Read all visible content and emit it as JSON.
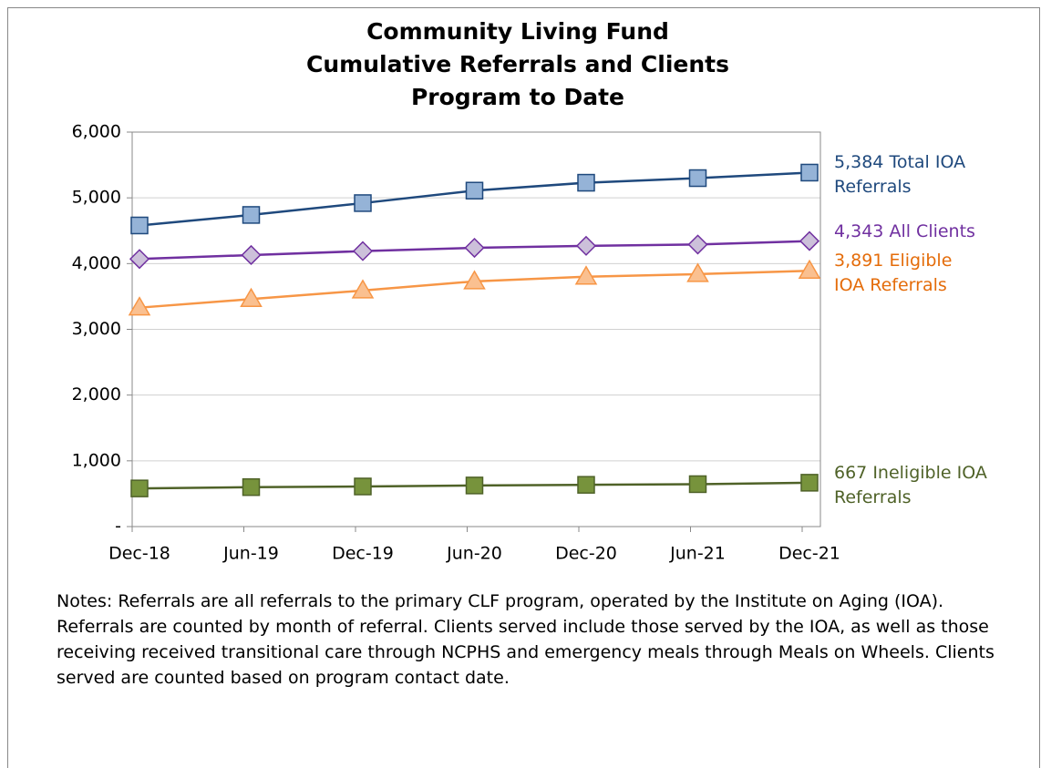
{
  "chart_data": {
    "type": "line",
    "title": [
      "Community Living Fund",
      "Cumulative Referrals and Clients",
      "Program to Date"
    ],
    "categories": [
      "Dec-18",
      "Jun-19",
      "Dec-19",
      "Jun-20",
      "Dec-20",
      "Jun-21",
      "Dec-21"
    ],
    "ylim": [
      0,
      6000
    ],
    "yticks": [
      {
        "value": 0,
        "label": "-"
      },
      {
        "value": 1000,
        "label": "1,000"
      },
      {
        "value": 2000,
        "label": "2,000"
      },
      {
        "value": 3000,
        "label": "3,000"
      },
      {
        "value": 4000,
        "label": "4,000"
      },
      {
        "value": 5000,
        "label": "5,000"
      },
      {
        "value": 6000,
        "label": "6,000"
      }
    ],
    "grid": true,
    "series": [
      {
        "name": "Total IOA Referrals",
        "color": "#1f497d",
        "marker": "square",
        "marker_color": "#95b3d7",
        "values": [
          4580,
          4740,
          4920,
          5110,
          5230,
          5300,
          5384
        ],
        "value_labels": [
          null,
          null,
          null,
          null,
          null,
          null,
          "5,384"
        ]
      },
      {
        "name": "All Clients",
        "color": "#7030a0",
        "marker": "diamond",
        "marker_color": "#ccc0da",
        "values": [
          4070,
          4130,
          4190,
          4240,
          4270,
          4290,
          4343
        ],
        "value_labels": [
          null,
          null,
          null,
          null,
          null,
          null,
          "4,343"
        ]
      },
      {
        "name": "Eligible IOA Referrals",
        "color": "#f79646",
        "marker": "triangle",
        "marker_color": "#fac090",
        "values": [
          3330,
          3460,
          3590,
          3730,
          3800,
          3840,
          3891
        ],
        "value_labels": [
          null,
          null,
          null,
          null,
          null,
          null,
          "3,891"
        ]
      },
      {
        "name": "Ineligible IOA Referrals",
        "color": "#4f6228",
        "marker": "square",
        "marker_color": "#77933c",
        "values": [
          580,
          600,
          610,
          625,
          635,
          645,
          667
        ],
        "value_labels": [
          null,
          null,
          null,
          null,
          null,
          null,
          "667"
        ]
      }
    ],
    "notes": "Notes: Referrals are all referrals to the primary CLF program, operated by the Institute on Aging (IOA).  Referrals are counted by month of referral.  Clients served include those served by the IOA, as well as those receiving received transitional care through NCPHS and emergency meals through Meals on Wheels. Clients served are counted based on program contact date."
  }
}
